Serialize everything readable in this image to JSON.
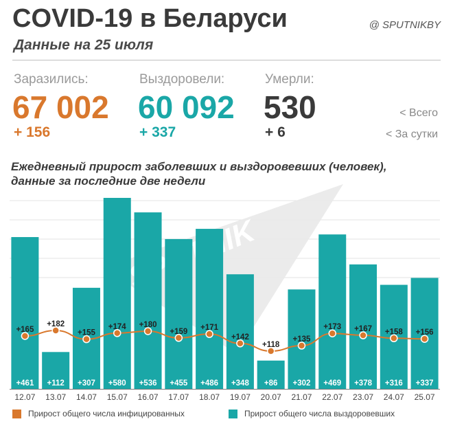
{
  "header": {
    "title": "COVID-19 в Беларуси",
    "subtitle": "Данные на 25 июля",
    "handle": "@ SPUTNIKBY"
  },
  "stats": {
    "infected": {
      "label": "Заразились:",
      "total": "67 002",
      "daily": "+ 156",
      "color": "#d9782d"
    },
    "recovered": {
      "label": "Выздоровели:",
      "total": "60 092",
      "daily": "+ 337",
      "color": "#1aa7a7"
    },
    "died": {
      "label": "Умерли:",
      "total": "530",
      "daily": "+ 6",
      "color": "#3a3a3a"
    }
  },
  "key": {
    "total": "<  Всего",
    "daily": "<  За сутки"
  },
  "chart_data": {
    "type": "bar",
    "title": "Ежедневный прирост заболевших и выздоровевших (человек), данные за последние две недели",
    "categories": [
      "12.07",
      "13.07",
      "14.07",
      "15.07",
      "16.07",
      "17.07",
      "18.07",
      "19.07",
      "20.07",
      "21.07",
      "22.07",
      "23.07",
      "24.07",
      "25.07"
    ],
    "series": [
      {
        "name": "Прирост общего числа выздоровевших",
        "type": "bar",
        "color": "#1aa7a7",
        "values": [
          461,
          112,
          307,
          580,
          536,
          455,
          486,
          348,
          86,
          302,
          469,
          378,
          316,
          337
        ],
        "labels": [
          "+461",
          "+112",
          "+307",
          "+580",
          "+536",
          "+455",
          "+486",
          "+348",
          "+86",
          "+302",
          "+469",
          "+378",
          "+316",
          "+337"
        ]
      },
      {
        "name": "Прирост общего числа инфицированных",
        "type": "line",
        "color": "#d9782d",
        "values": [
          165,
          182,
          155,
          174,
          180,
          159,
          171,
          142,
          118,
          135,
          173,
          167,
          158,
          156
        ],
        "labels": [
          "+165",
          "+182",
          "+155",
          "+174",
          "+180",
          "+159",
          "+171",
          "+142",
          "+118",
          "+135",
          "+173",
          "+167",
          "+158",
          "+156"
        ]
      }
    ],
    "legend_position": "bottom"
  },
  "watermark": "SPUTNIK"
}
